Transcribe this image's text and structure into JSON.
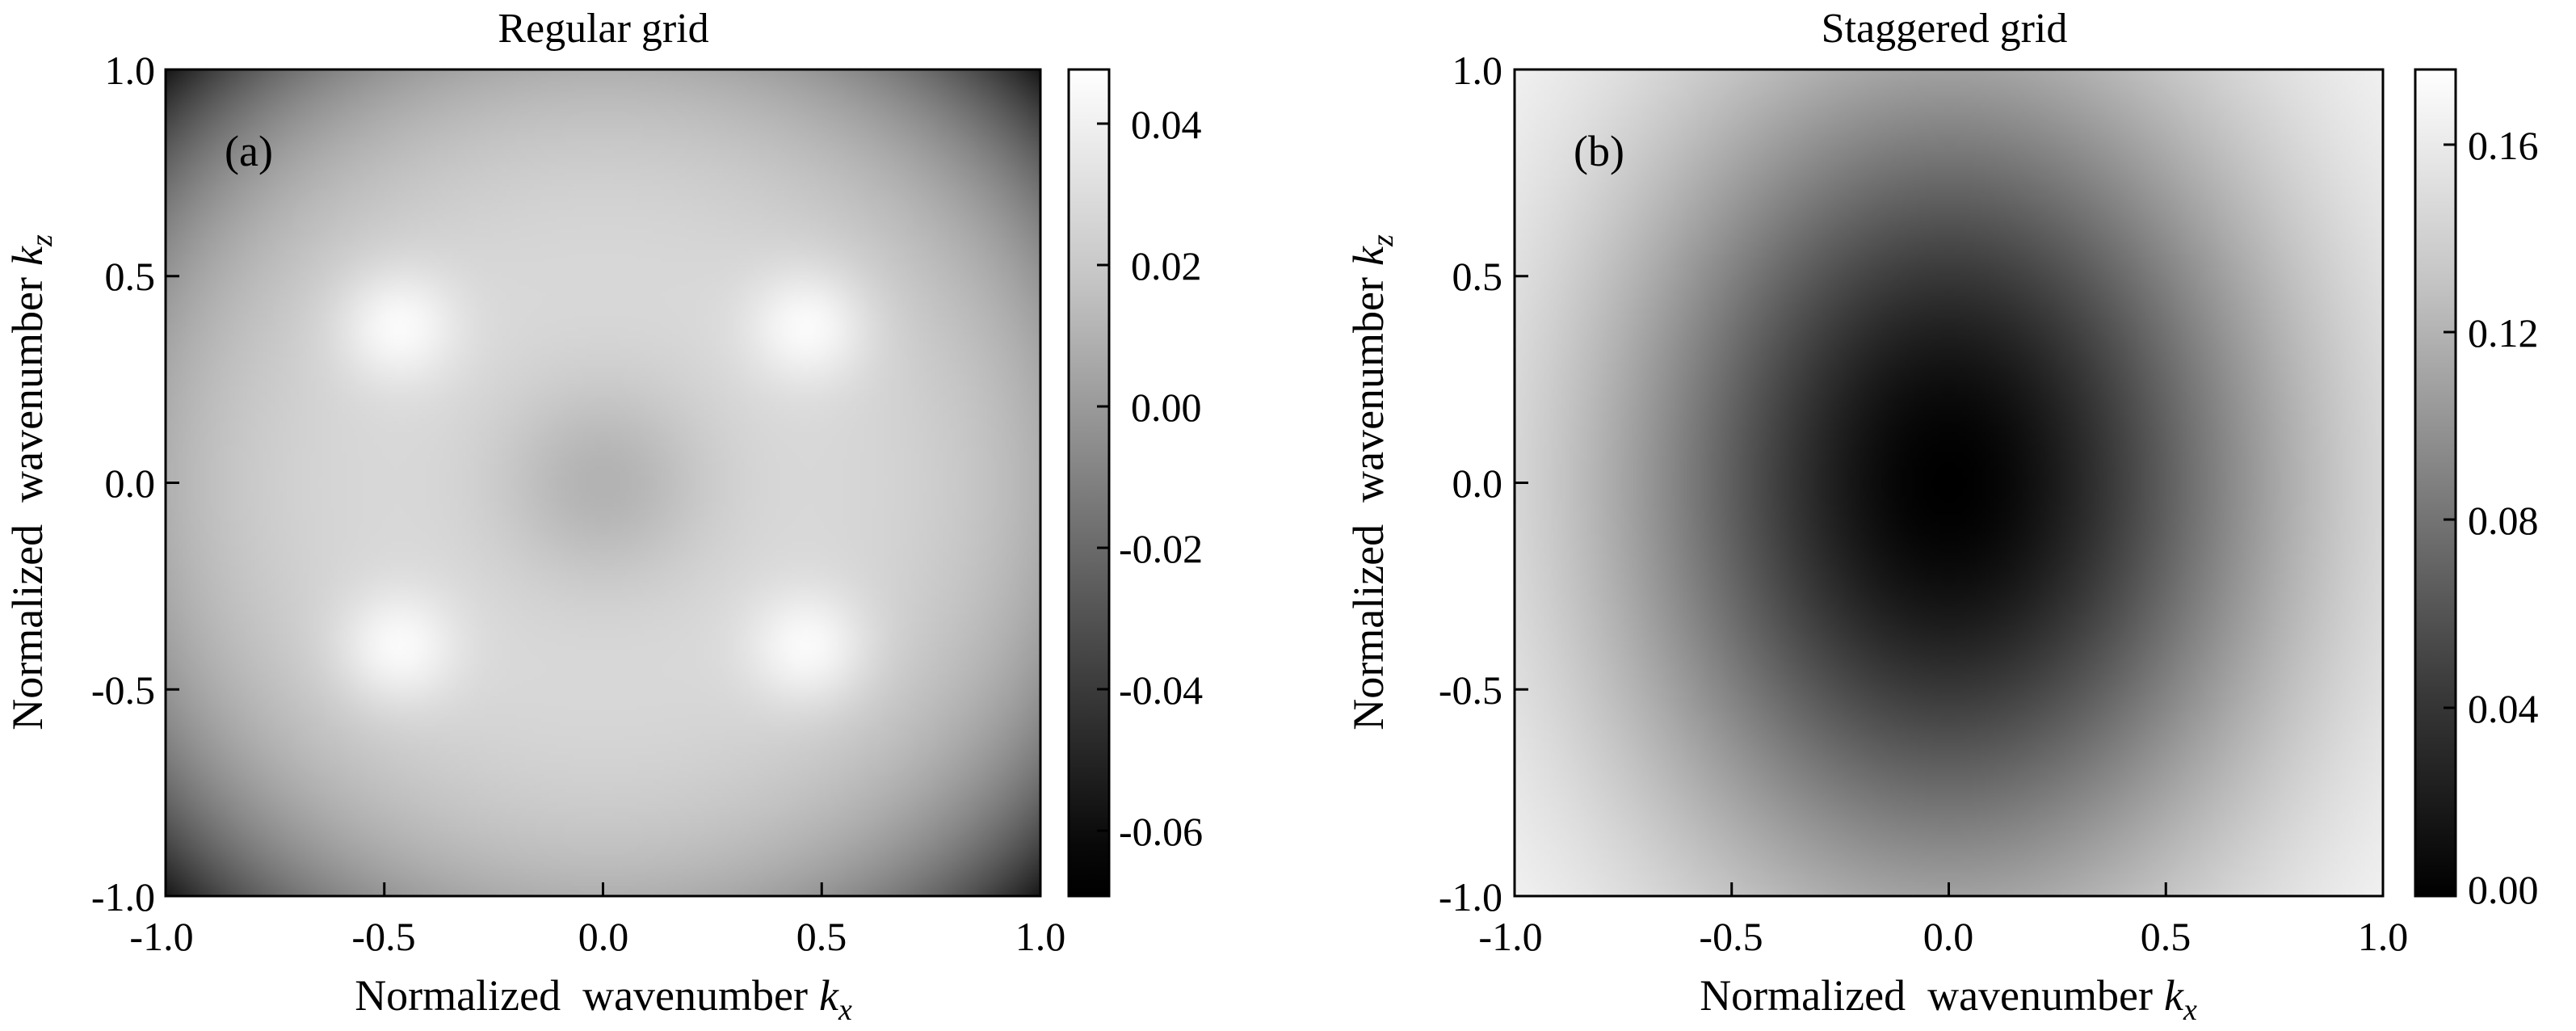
{
  "chart_data": [
    {
      "type": "heatmap",
      "title": "Regular grid",
      "panel_label": "(a)",
      "xlabel": "Normalized  wavenumber",
      "xlabel_symbol": "k",
      "xlabel_sub": "x",
      "ylabel": "Normalized  wavenumber",
      "ylabel_symbol": "k",
      "ylabel_sub": "z",
      "xlim": [
        -1.0,
        1.0
      ],
      "ylim": [
        -1.0,
        1.0
      ],
      "xticks": [
        "-1.0",
        "-0.5",
        "0.0",
        "0.5",
        "1.0"
      ],
      "yticks": [
        "-1.0",
        "-0.5",
        "0.0",
        "0.5",
        "1.0"
      ],
      "colormap": "gray",
      "colorbar_range": [
        -0.07,
        0.047
      ],
      "colorbar_ticks": [
        "0.04",
        "0.02",
        "0.00",
        "-0.02",
        "-0.04",
        "-0.06"
      ],
      "features": {
        "corner_minimum": -0.065,
        "center_value": 0.012,
        "peak_value": 0.045,
        "peak_locations": [
          [
            -0.47,
            0.38
          ],
          [
            0.47,
            0.38
          ],
          [
            -0.47,
            -0.4
          ],
          [
            0.47,
            -0.4
          ]
        ]
      }
    },
    {
      "type": "heatmap",
      "title": "Staggered grid",
      "panel_label": "(b)",
      "xlabel": "Normalized  wavenumber",
      "xlabel_symbol": "k",
      "xlabel_sub": "x",
      "ylabel": "Normalized  wavenumber",
      "ylabel_symbol": "k",
      "ylabel_sub": "z",
      "xlim": [
        -1.0,
        1.0
      ],
      "ylim": [
        -1.0,
        1.0
      ],
      "xticks": [
        "-1.0",
        "-0.5",
        "0.0",
        "0.5",
        "1.0"
      ],
      "yticks": [
        "-1.0",
        "-0.5",
        "0.0",
        "0.5",
        "1.0"
      ],
      "colormap": "gray",
      "colorbar_range": [
        0.0,
        0.175
      ],
      "colorbar_ticks": [
        "0.16",
        "0.12",
        "0.08",
        "0.04",
        "0.00"
      ],
      "features": {
        "center_minimum": 0.0,
        "edge_maximum": 0.17
      }
    }
  ]
}
